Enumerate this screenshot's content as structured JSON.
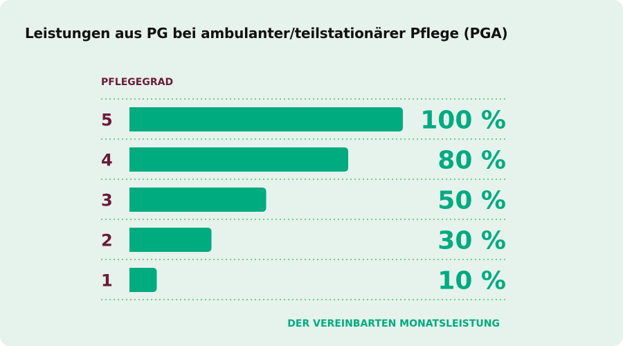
{
  "chart_data": {
    "type": "bar",
    "orientation": "horizontal",
    "title": "Leistungen aus PG bei ambulanter/teilstationärer Pflege (PGA)",
    "ylabel": "PFLEGEGRAD",
    "xlabel": "DER VEREINBARTEN MONATSLEISTUNG",
    "categories": [
      "5",
      "4",
      "3",
      "2",
      "1"
    ],
    "values": [
      100,
      80,
      50,
      30,
      10
    ],
    "value_labels": [
      "100 %",
      "80 %",
      "50 %",
      "30 %",
      "10 %"
    ],
    "unit": "%",
    "xlim": [
      0,
      100
    ],
    "grid": "dotted row separators",
    "colors": {
      "bar": "#00ab80",
      "value_label": "#00ab80",
      "category": "#6b1a3a",
      "separator": "#6cc97e",
      "background": "#e6f2ec"
    }
  }
}
